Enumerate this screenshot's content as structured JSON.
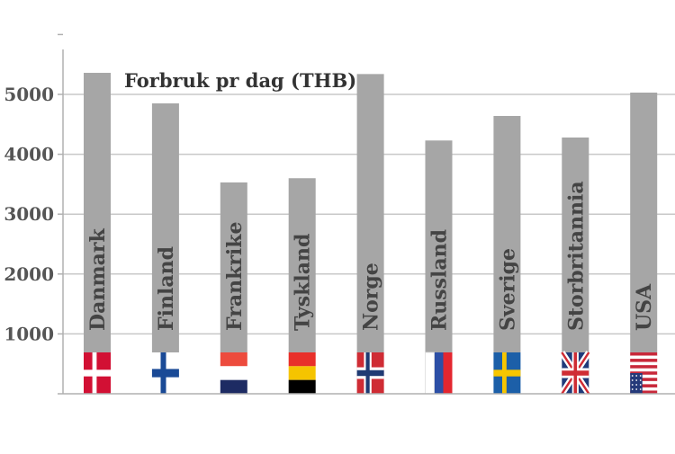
{
  "chart_data": {
    "type": "bar",
    "title": "Forbruk pr dag (THB)",
    "categories": [
      "Danmark",
      "Finland",
      "Frankrike",
      "Tyskland",
      "Norge",
      "Russland",
      "Sverige",
      "Storbritannia",
      "USA"
    ],
    "values": [
      5360,
      4850,
      3530,
      3600,
      5340,
      4230,
      4640,
      4280,
      5030
    ],
    "flag_icons": [
      "denmark-flag-icon",
      "finland-flag-icon",
      "france-flag-icon",
      "germany-flag-icon",
      "norway-flag-icon",
      "russia-flag-icon",
      "sweden-flag-icon",
      "uk-flag-icon",
      "usa-flag-icon"
    ],
    "yticks": [
      "1000",
      "2000",
      "3000",
      "4000",
      "5000"
    ],
    "ylim": [
      0,
      6000
    ],
    "grid": true,
    "colors": {
      "bar": "#a6a6a6",
      "grid": "#c8c8c8",
      "axis": "#b0b0b0"
    }
  }
}
